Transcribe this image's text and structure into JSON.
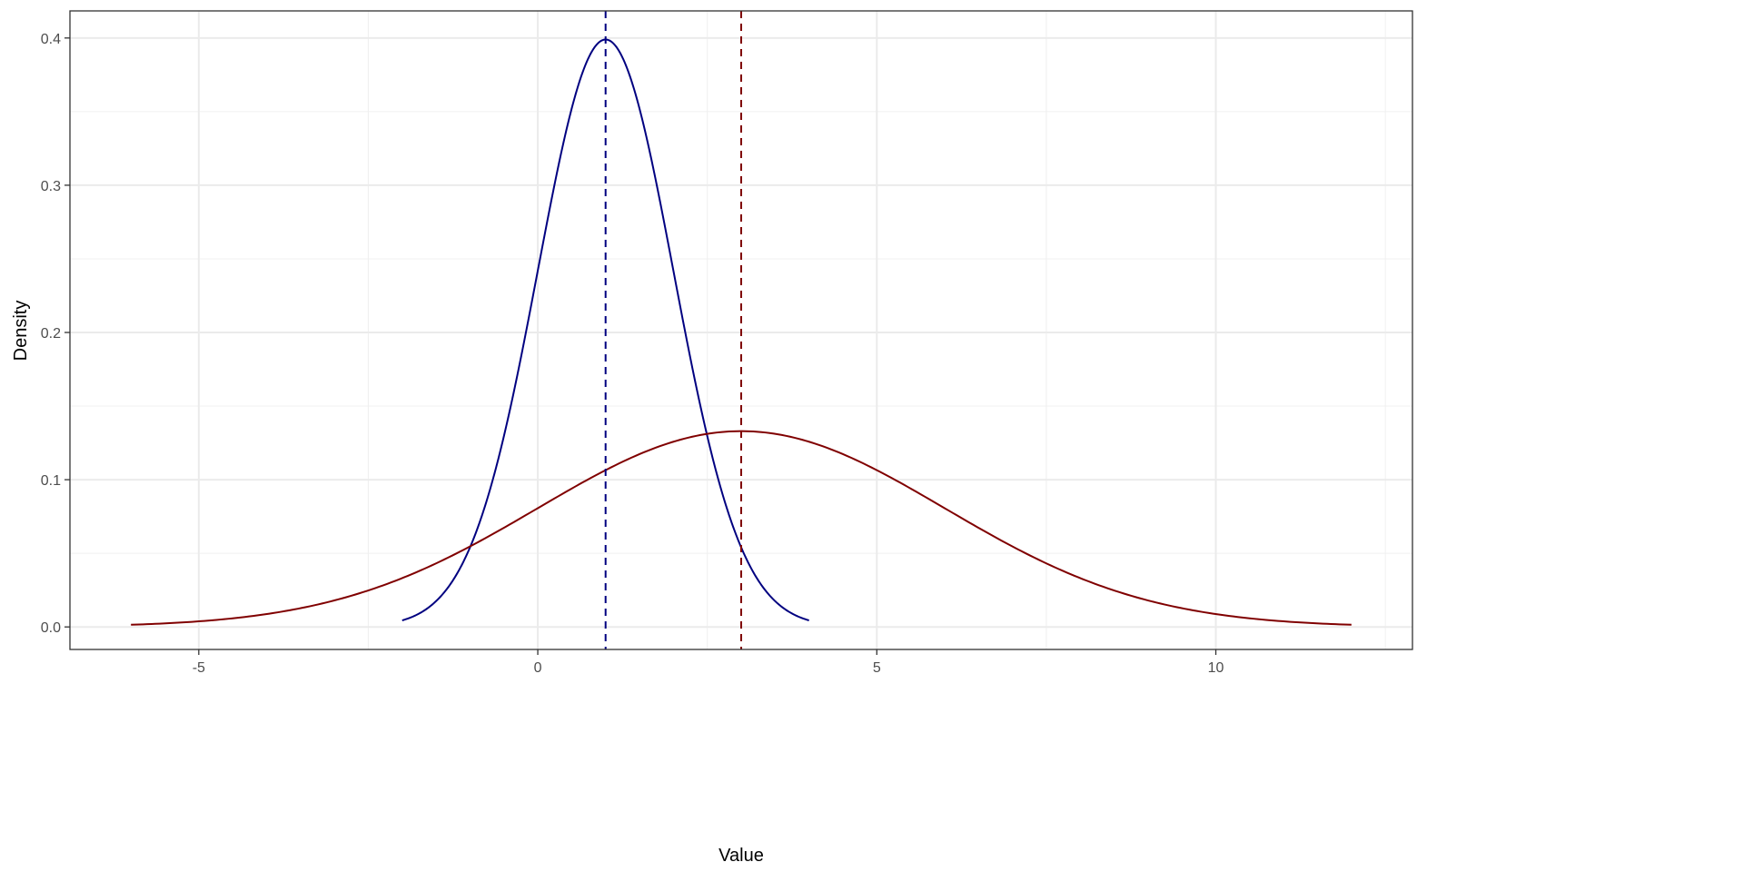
{
  "chart_data": {
    "type": "line",
    "title": "",
    "xlabel": "Value",
    "ylabel": "Density",
    "xlim": [
      -6.9,
      12.9
    ],
    "ylim": [
      -0.0153,
      0.4184
    ],
    "x_ticks": [
      -5,
      0,
      5,
      10
    ],
    "x_tick_labels": [
      "-5",
      "0",
      "5",
      "10"
    ],
    "x_minor_ticks": [
      -2.5,
      2.5,
      7.5,
      12.5
    ],
    "y_ticks": [
      0,
      0.1,
      0.2,
      0.3,
      0.4
    ],
    "y_tick_labels": [
      "0.0",
      "0.1",
      "0.2",
      "0.3",
      "0.4"
    ],
    "y_minor_ticks": [
      0.05,
      0.15,
      0.25,
      0.35
    ],
    "grid": true,
    "legend": "none",
    "series": [
      {
        "distribution": "normal",
        "mean": 1,
        "sd": 1,
        "x_range": [
          -2,
          4
        ],
        "color": "#000080",
        "peak": 0.399
      },
      {
        "distribution": "normal",
        "mean": 3,
        "sd": 3,
        "x_range": [
          -6,
          12
        ],
        "color": "#800000",
        "peak": 0.133
      }
    ],
    "vlines": [
      {
        "x": 1,
        "color": "#000080",
        "style": "dashed"
      },
      {
        "x": 3,
        "color": "#800000",
        "style": "dashed"
      }
    ]
  }
}
